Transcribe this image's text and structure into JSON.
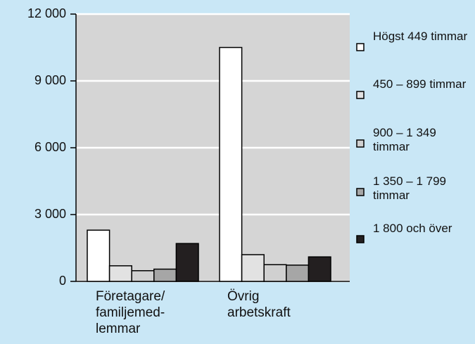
{
  "chart_data": {
    "type": "bar",
    "categories": [
      [
        "Företagare/",
        "familjemed-",
        "lemmar"
      ],
      [
        "Övrig",
        "arbetskraft"
      ]
    ],
    "series": [
      {
        "name": "Högst 449 timmar",
        "color": "#ffffff",
        "values": [
          2300,
          10500
        ]
      },
      {
        "name": "450 – 899 timmar",
        "color": "#e2e2e2",
        "values": [
          700,
          1200
        ]
      },
      {
        "name": "900 – 1 349 timmar",
        "color": "#d0d0d0",
        "values": [
          480,
          750
        ]
      },
      {
        "name": "1 350 – 1 799 timmar",
        "color": "#a6a6a6",
        "values": [
          550,
          730
        ]
      },
      {
        "name": "1 800 och över",
        "color": "#231f20",
        "values": [
          1700,
          1100
        ]
      }
    ],
    "ylim": [
      0,
      12000
    ],
    "yticks": [
      {
        "value": 0,
        "label": "0"
      },
      {
        "value": 3000,
        "label": "3 000"
      },
      {
        "value": 6000,
        "label": "6 000"
      },
      {
        "value": 9000,
        "label": "9 000"
      },
      {
        "value": 12000,
        "label": "12 000"
      }
    ],
    "grid": true
  }
}
